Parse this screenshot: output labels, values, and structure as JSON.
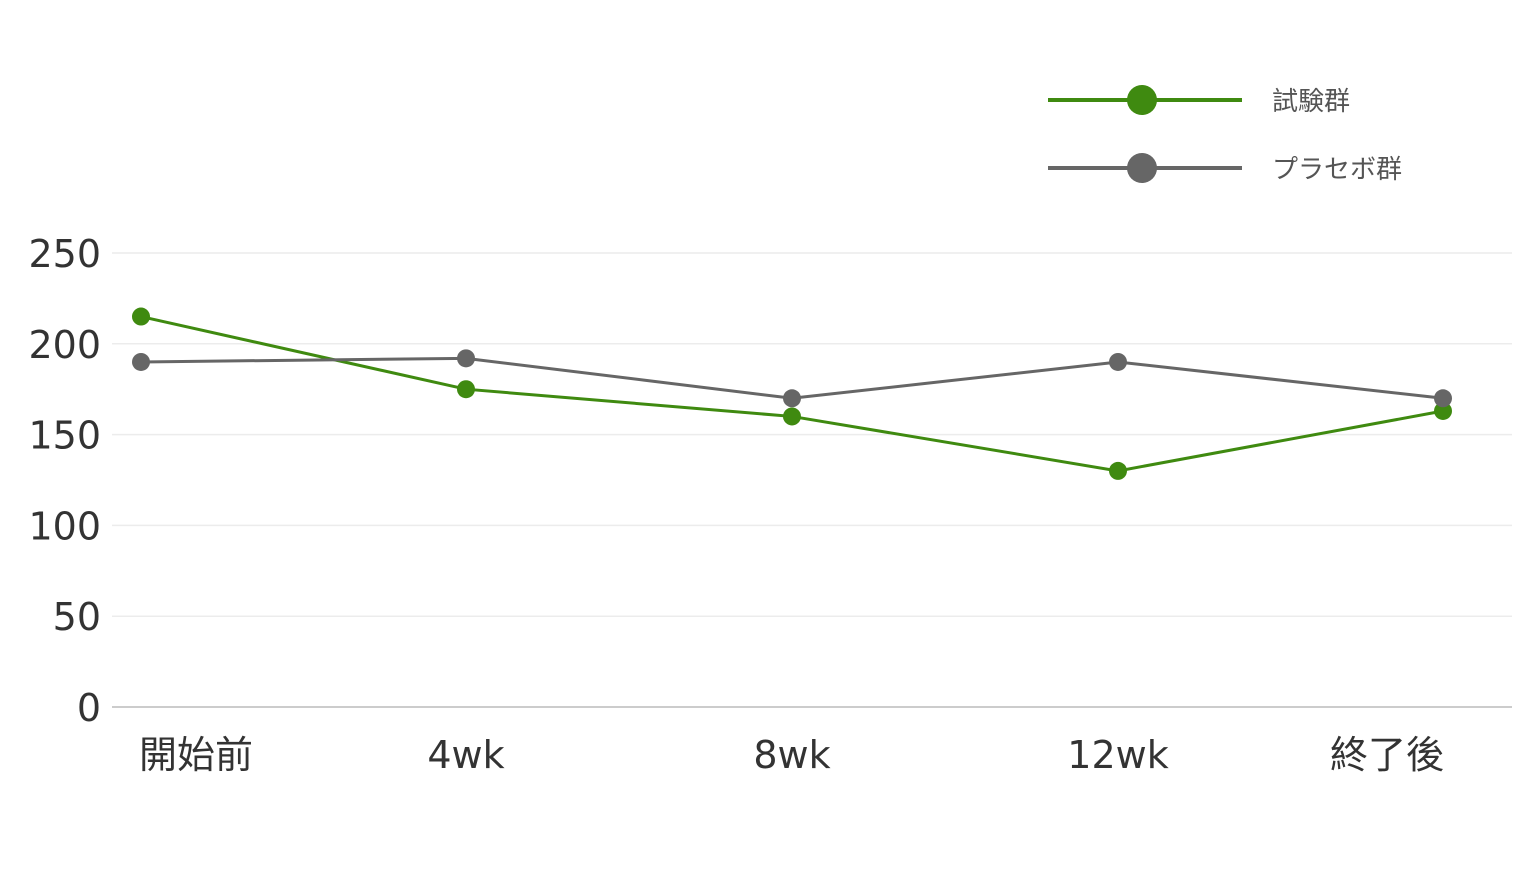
{
  "chart_data": {
    "type": "line",
    "categories": [
      "開始前",
      "4wk",
      "8wk",
      "12wk",
      "終了後"
    ],
    "series": [
      {
        "name": "試験群",
        "color": "#3f8a10",
        "values": [
          215,
          175,
          160,
          130,
          163
        ]
      },
      {
        "name": "プラセボ群",
        "color": "#666666",
        "values": [
          190,
          192,
          170,
          190,
          170
        ]
      }
    ],
    "ylim": [
      0,
      250
    ],
    "yticks": [
      0,
      50,
      100,
      150,
      200,
      250
    ],
    "grid": true,
    "legend_position": "top-right",
    "title": "",
    "xlabel": "",
    "ylabel": ""
  }
}
